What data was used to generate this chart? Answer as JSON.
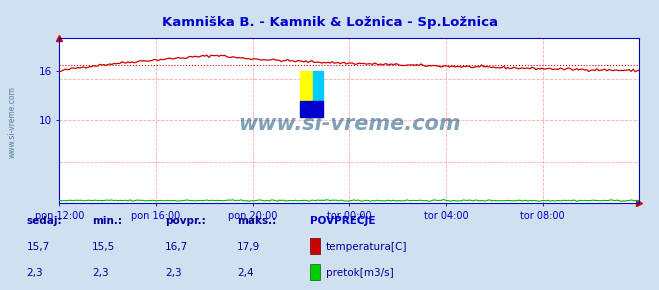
{
  "title": "Kamniška B. - Kamnik & Ložnica - Sp.Ložnica",
  "title_color": "#0000cc",
  "bg_color": "#d0e0f0",
  "plot_bg_color": "#ffffff",
  "x_labels": [
    "pon 12:00",
    "pon 16:00",
    "pon 20:00",
    "tor 00:00",
    "tor 04:00",
    "tor 08:00"
  ],
  "x_ticks_norm": [
    0.0,
    0.1667,
    0.3333,
    0.5,
    0.6667,
    0.8333
  ],
  "ylim_min": 0,
  "ylim_max": 20,
  "ytick_vals": [
    10,
    16
  ],
  "ytick_labels": [
    "10",
    "16"
  ],
  "temp_color": "#cc0000",
  "flow_color": "#00bb00",
  "avg_line_color": "#cc0000",
  "avg_temp": 16.7,
  "watermark_text": "www.si-vreme.com",
  "watermark_color": "#1a5580",
  "grid_color": "#ffaaaa",
  "n_points": 288,
  "sedaj_label": "sedaj:",
  "min_label": "min.:",
  "povpr_label": "povpr.:",
  "maks_label": "maks.:",
  "povprecje_label": "POVPREČJE",
  "temp_label": "temperatura[C]",
  "flow_label": "pretok[m3/s]",
  "temp_sedaj": "15,7",
  "temp_min": "15,5",
  "temp_povpr": "16,7",
  "temp_maks": "17,9",
  "flow_sedaj": "2,3",
  "flow_min": "2,3",
  "flow_povpr": "2,3",
  "flow_maks": "2,4",
  "label_color": "#000099",
  "axis_color": "#0000cc"
}
